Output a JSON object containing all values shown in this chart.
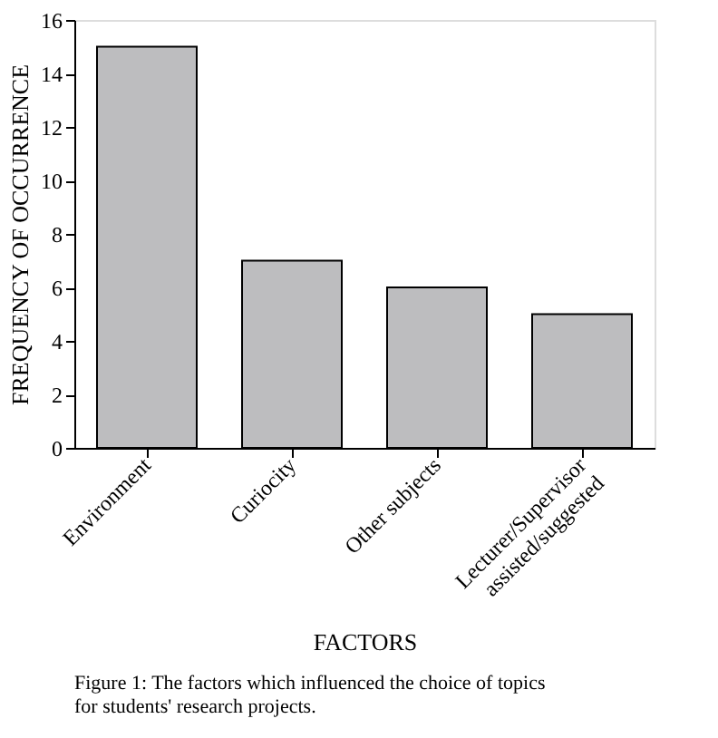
{
  "chart_data": {
    "type": "bar",
    "categories": [
      "Environment",
      "Curiocity",
      "Other subjects",
      "Lecturer/Supervisor\nassisted/suggested"
    ],
    "values": [
      15,
      7,
      6,
      5
    ],
    "color": "#bdbdbf",
    "xlabel": "FACTORS",
    "ylabel": "FREQUENCY OF OCCURRENCE",
    "ylim": [
      0,
      16
    ],
    "yticks": [
      0,
      2,
      4,
      6,
      8,
      10,
      12,
      14,
      16
    ],
    "grid": false,
    "annotations": [
      "Figure 1: The factors which influenced the choice of topics for students' research projects."
    ]
  }
}
